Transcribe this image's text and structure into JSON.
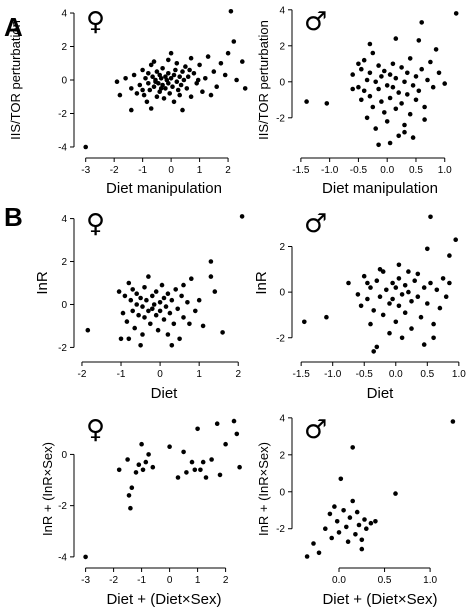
{
  "panel_labels": {
    "a": "A",
    "b": "B"
  },
  "chart_data": [
    {
      "id": "a-female",
      "type": "scatter",
      "panel": "A",
      "sex": "♀",
      "xlabel": "Diet manipulation",
      "ylabel": "IIS/TOR perturbation",
      "xlim": [
        -3.2,
        2.7
      ],
      "ylim": [
        -4.3,
        4.3
      ],
      "xticks": [
        -3,
        -2,
        -1,
        0,
        1,
        2
      ],
      "yticks": [
        -4,
        -2,
        0,
        2,
        4
      ],
      "points": [
        [
          -3.0,
          -4.0
        ],
        [
          2.1,
          4.1
        ],
        [
          -1.9,
          -0.1
        ],
        [
          -1.8,
          -0.9
        ],
        [
          -1.6,
          0.1
        ],
        [
          -1.4,
          -0.5
        ],
        [
          -1.4,
          -1.8
        ],
        [
          -1.3,
          0.3
        ],
        [
          -1.2,
          -0.8
        ],
        [
          -1.1,
          -0.3
        ],
        [
          -1.0,
          0.6
        ],
        [
          -1.0,
          -0.6
        ],
        [
          -0.95,
          -0.9
        ],
        [
          -0.9,
          0.1
        ],
        [
          -0.85,
          -1.3
        ],
        [
          -0.8,
          0.4
        ],
        [
          -0.8,
          -0.2
        ],
        [
          -0.75,
          -0.6
        ],
        [
          -0.7,
          0.9
        ],
        [
          -0.7,
          -1.7
        ],
        [
          -0.65,
          0.2
        ],
        [
          -0.6,
          -0.4
        ],
        [
          -0.6,
          1.1
        ],
        [
          -0.55,
          0.0
        ],
        [
          -0.5,
          -1.0
        ],
        [
          -0.5,
          0.5
        ],
        [
          -0.45,
          -0.2
        ],
        [
          -0.4,
          0.3
        ],
        [
          -0.4,
          -0.7
        ],
        [
          -0.35,
          0.1
        ],
        [
          -0.3,
          -0.3
        ],
        [
          -0.3,
          0.7
        ],
        [
          -0.25,
          -1.1
        ],
        [
          -0.2,
          0.2
        ],
        [
          -0.2,
          -0.5
        ],
        [
          -0.15,
          0.0
        ],
        [
          -0.1,
          0.4
        ],
        [
          -0.1,
          -0.2
        ],
        [
          -0.05,
          -0.8
        ],
        [
          0.0,
          0.1
        ],
        [
          0.0,
          1.6
        ],
        [
          0.05,
          -0.4
        ],
        [
          0.1,
          0.3
        ],
        [
          0.1,
          -1.3
        ],
        [
          0.15,
          0.6
        ],
        [
          0.2,
          -0.1
        ],
        [
          0.2,
          1.0
        ],
        [
          0.25,
          -0.6
        ],
        [
          0.3,
          0.2
        ],
        [
          0.35,
          -0.3
        ],
        [
          0.4,
          0.5
        ],
        [
          0.4,
          -1.8
        ],
        [
          0.45,
          0.0
        ],
        [
          0.5,
          0.8
        ],
        [
          0.55,
          -0.5
        ],
        [
          0.6,
          0.2
        ],
        [
          0.7,
          1.3
        ],
        [
          0.7,
          -1.0
        ],
        [
          0.8,
          0.4
        ],
        [
          0.9,
          -0.2
        ],
        [
          1.0,
          0.9
        ],
        [
          1.1,
          -0.7
        ],
        [
          1.2,
          0.1
        ],
        [
          1.3,
          1.4
        ],
        [
          1.5,
          0.5
        ],
        [
          1.6,
          -0.4
        ],
        [
          1.9,
          0.3
        ],
        [
          2.0,
          1.6
        ],
        [
          2.2,
          2.3
        ],
        [
          2.5,
          1.1
        ],
        [
          2.6,
          -0.5
        ],
        [
          2.3,
          0.0
        ],
        [
          1.75,
          1.0
        ],
        [
          1.4,
          -0.9
        ],
        [
          0.95,
          0.0
        ],
        [
          -0.55,
          -0.1
        ],
        [
          -0.35,
          -0.5
        ],
        [
          -0.1,
          1.2
        ],
        [
          0.3,
          -0.9
        ],
        [
          0.65,
          0.6
        ]
      ]
    },
    {
      "id": "a-male",
      "type": "scatter",
      "panel": "A",
      "sex": "♂",
      "xlabel": "Diet manipulation",
      "ylabel": "IIS/TOR perturbation",
      "xlim": [
        -1.55,
        1.3
      ],
      "ylim": [
        -3.9,
        4.1
      ],
      "xticks": [
        -1.5,
        -1.0,
        -0.5,
        0.0,
        0.5,
        1.0
      ],
      "yticks": [
        -2,
        0,
        2,
        4
      ],
      "xtick_labels": [
        "-1.5",
        "-1.0",
        "-0.5",
        "0.0",
        "0.5",
        "1.0"
      ],
      "points": [
        [
          1.2,
          3.8
        ],
        [
          0.6,
          3.3
        ],
        [
          -1.4,
          -1.1
        ],
        [
          -1.05,
          -1.2
        ],
        [
          -0.6,
          0.4
        ],
        [
          -0.5,
          -0.3
        ],
        [
          -0.45,
          0.7
        ],
        [
          -0.45,
          -1.0
        ],
        [
          -0.4,
          1.2
        ],
        [
          -0.4,
          -0.5
        ],
        [
          -0.35,
          0.1
        ],
        [
          -0.35,
          -2.0
        ],
        [
          -0.3,
          -0.8
        ],
        [
          -0.3,
          0.5
        ],
        [
          -0.25,
          1.6
        ],
        [
          -0.25,
          -1.4
        ],
        [
          -0.2,
          0.0
        ],
        [
          -0.2,
          -2.6
        ],
        [
          -0.15,
          0.9
        ],
        [
          -0.15,
          -0.4
        ],
        [
          -0.1,
          -1.1
        ],
        [
          -0.1,
          0.3
        ],
        [
          -0.05,
          -1.7
        ],
        [
          -0.05,
          0.6
        ],
        [
          0.0,
          -0.2
        ],
        [
          0.0,
          -2.2
        ],
        [
          0.05,
          0.4
        ],
        [
          0.05,
          -0.9
        ],
        [
          0.1,
          1.0
        ],
        [
          0.1,
          -0.3
        ],
        [
          0.15,
          -1.5
        ],
        [
          0.15,
          0.2
        ],
        [
          0.2,
          -0.6
        ],
        [
          0.2,
          -3.0
        ],
        [
          0.25,
          0.8
        ],
        [
          0.25,
          -1.2
        ],
        [
          0.3,
          0.0
        ],
        [
          0.3,
          -2.4
        ],
        [
          0.35,
          0.5
        ],
        [
          0.35,
          -0.7
        ],
        [
          0.4,
          -1.8
        ],
        [
          0.4,
          1.3
        ],
        [
          0.45,
          -0.2
        ],
        [
          0.45,
          -3.1
        ],
        [
          0.5,
          0.3
        ],
        [
          0.5,
          -1.0
        ],
        [
          0.55,
          -0.5
        ],
        [
          0.6,
          0.7
        ],
        [
          0.65,
          -1.4
        ],
        [
          0.7,
          0.1
        ],
        [
          0.75,
          1.1
        ],
        [
          0.8,
          -0.3
        ],
        [
          0.9,
          0.5
        ],
        [
          1.0,
          -0.1
        ],
        [
          0.85,
          1.8
        ],
        [
          0.55,
          2.3
        ],
        [
          0.15,
          2.4
        ],
        [
          -0.3,
          2.1
        ],
        [
          -0.5,
          1.0
        ],
        [
          -0.6,
          -0.4
        ],
        [
          0.05,
          -3.4
        ],
        [
          0.3,
          -2.8
        ],
        [
          -0.15,
          -3.5
        ],
        [
          0.65,
          -2.1
        ]
      ]
    },
    {
      "id": "b-female",
      "type": "scatter",
      "panel": "B",
      "sex": "♀",
      "xlabel": "Diet",
      "ylabel": "InR",
      "xlim": [
        -2.05,
        2.25
      ],
      "ylim": [
        -2.4,
        4.4
      ],
      "xticks": [
        -2,
        -1,
        0,
        1,
        2
      ],
      "yticks": [
        -2,
        0,
        2,
        4
      ],
      "points": [
        [
          2.1,
          4.1
        ],
        [
          -1.85,
          -1.2
        ],
        [
          -1.05,
          0.6
        ],
        [
          -0.95,
          -0.4
        ],
        [
          -0.9,
          0.4
        ],
        [
          -0.85,
          -0.8
        ],
        [
          -0.8,
          1.0
        ],
        [
          -0.8,
          -1.6
        ],
        [
          -0.75,
          0.2
        ],
        [
          -0.7,
          -0.3
        ],
        [
          -0.7,
          0.7
        ],
        [
          -0.65,
          -1.1
        ],
        [
          -0.6,
          0.0
        ],
        [
          -0.6,
          0.5
        ],
        [
          -0.55,
          -0.5
        ],
        [
          -0.5,
          0.3
        ],
        [
          -0.5,
          -1.9
        ],
        [
          -0.45,
          -0.1
        ],
        [
          -0.4,
          0.8
        ],
        [
          -0.4,
          -0.6
        ],
        [
          -0.35,
          0.2
        ],
        [
          -0.3,
          -0.3
        ],
        [
          -0.3,
          1.3
        ],
        [
          -0.25,
          -0.9
        ],
        [
          -0.2,
          0.4
        ],
        [
          -0.2,
          -0.2
        ],
        [
          -0.15,
          0.0
        ],
        [
          -0.1,
          -0.5
        ],
        [
          -0.1,
          0.6
        ],
        [
          -0.05,
          -1.2
        ],
        [
          0.0,
          0.1
        ],
        [
          0.0,
          -0.3
        ],
        [
          0.05,
          0.9
        ],
        [
          0.1,
          -0.7
        ],
        [
          0.1,
          0.3
        ],
        [
          0.15,
          -0.1
        ],
        [
          0.2,
          -1.4
        ],
        [
          0.2,
          0.5
        ],
        [
          0.25,
          -0.4
        ],
        [
          0.3,
          0.2
        ],
        [
          0.35,
          -0.9
        ],
        [
          0.4,
          0.7
        ],
        [
          0.45,
          -0.2
        ],
        [
          0.5,
          -1.6
        ],
        [
          0.55,
          0.4
        ],
        [
          0.6,
          -0.6
        ],
        [
          0.7,
          0.1
        ],
        [
          0.8,
          1.2
        ],
        [
          0.9,
          -0.3
        ],
        [
          1.1,
          -1.0
        ],
        [
          1.3,
          1.3
        ],
        [
          1.4,
          0.6
        ],
        [
          1.6,
          -1.3
        ],
        [
          1.3,
          2.0
        ],
        [
          1.0,
          0.2
        ],
        [
          0.6,
          0.9
        ],
        [
          -0.45,
          -1.4
        ],
        [
          0.3,
          -1.9
        ],
        [
          -1.0,
          -1.6
        ],
        [
          0.75,
          -0.9
        ]
      ]
    },
    {
      "id": "b-male",
      "type": "scatter",
      "panel": "B",
      "sex": "♂",
      "xlabel": "Diet",
      "ylabel": "InR",
      "xlim": [
        -1.55,
        1.05
      ],
      "ylim": [
        -2.8,
        3.6
      ],
      "xticks": [
        -1.5,
        -1.0,
        -0.5,
        0.0,
        0.5,
        1.0
      ],
      "yticks": [
        -2,
        0,
        2
      ],
      "xtick_labels": [
        "-1.5",
        "-1.0",
        "-0.5",
        "0.0",
        "0.5",
        "1.0"
      ],
      "points": [
        [
          -1.45,
          -1.3
        ],
        [
          -1.1,
          -1.1
        ],
        [
          0.55,
          3.3
        ],
        [
          0.95,
          2.3
        ],
        [
          0.5,
          1.9
        ],
        [
          0.85,
          1.6
        ],
        [
          -0.75,
          0.4
        ],
        [
          -0.6,
          -0.1
        ],
        [
          -0.55,
          -0.6
        ],
        [
          -0.5,
          0.7
        ],
        [
          -0.45,
          -0.3
        ],
        [
          -0.4,
          -1.4
        ],
        [
          -0.4,
          0.2
        ],
        [
          -0.35,
          -0.8
        ],
        [
          -0.3,
          0.5
        ],
        [
          -0.3,
          -2.4
        ],
        [
          -0.25,
          -0.2
        ],
        [
          -0.2,
          0.9
        ],
        [
          -0.2,
          -1.0
        ],
        [
          -0.15,
          0.1
        ],
        [
          -0.1,
          -0.5
        ],
        [
          -0.1,
          -1.8
        ],
        [
          -0.05,
          0.4
        ],
        [
          -0.05,
          -0.3
        ],
        [
          0.0,
          0.2
        ],
        [
          0.0,
          -1.3
        ],
        [
          0.05,
          -0.6
        ],
        [
          0.05,
          0.6
        ],
        [
          0.1,
          -0.1
        ],
        [
          0.1,
          -2.0
        ],
        [
          0.15,
          0.3
        ],
        [
          0.15,
          -0.9
        ],
        [
          0.2,
          0.0
        ],
        [
          0.25,
          -0.4
        ],
        [
          0.25,
          -1.6
        ],
        [
          0.3,
          0.5
        ],
        [
          0.35,
          -0.2
        ],
        [
          0.4,
          -1.1
        ],
        [
          0.45,
          0.2
        ],
        [
          0.5,
          -0.5
        ],
        [
          0.55,
          0.4
        ],
        [
          0.6,
          -1.4
        ],
        [
          0.65,
          0.1
        ],
        [
          0.7,
          -0.7
        ],
        [
          0.75,
          0.6
        ],
        [
          0.8,
          -0.2
        ],
        [
          0.85,
          0.4
        ],
        [
          0.45,
          -2.3
        ],
        [
          -0.35,
          -2.6
        ],
        [
          0.2,
          0.9
        ],
        [
          -0.25,
          1.0
        ],
        [
          0.05,
          1.2
        ],
        [
          0.35,
          0.8
        ],
        [
          -0.45,
          0.4
        ],
        [
          0.6,
          -2.0
        ]
      ]
    },
    {
      "id": "c-female",
      "type": "scatter",
      "panel": "",
      "sex": "♀",
      "xlabel": "Diet + (Diet×Sex)",
      "ylabel": "InR + (InR×Sex)",
      "xlim": [
        -3.2,
        2.8
      ],
      "ylim": [
        -4.2,
        1.5
      ],
      "xticks": [
        -3,
        -2,
        -1,
        0,
        1,
        2
      ],
      "yticks": [
        -4,
        -2,
        0
      ],
      "points": [
        [
          -3.0,
          -4.0
        ],
        [
          -1.8,
          -0.6
        ],
        [
          -1.5,
          -0.2
        ],
        [
          -1.45,
          -1.6
        ],
        [
          -1.4,
          -2.1
        ],
        [
          -1.35,
          -1.3
        ],
        [
          -1.2,
          -0.7
        ],
        [
          -1.1,
          -0.4
        ],
        [
          -1.0,
          0.4
        ],
        [
          -0.95,
          -0.6
        ],
        [
          -0.85,
          -0.3
        ],
        [
          -0.75,
          0.0
        ],
        [
          -0.6,
          -0.5
        ],
        [
          0.0,
          0.3
        ],
        [
          0.5,
          0.1
        ],
        [
          0.6,
          -0.7
        ],
        [
          0.8,
          -0.3
        ],
        [
          1.0,
          1.0
        ],
        [
          1.1,
          -0.6
        ],
        [
          1.2,
          -0.3
        ],
        [
          1.3,
          -0.9
        ],
        [
          1.5,
          -0.2
        ],
        [
          1.7,
          1.2
        ],
        [
          1.8,
          -0.8
        ],
        [
          2.0,
          0.4
        ],
        [
          2.3,
          1.3
        ],
        [
          2.4,
          0.8
        ],
        [
          2.5,
          -0.5
        ],
        [
          0.3,
          -0.9
        ],
        [
          0.9,
          -0.6
        ]
      ]
    },
    {
      "id": "c-male",
      "type": "scatter",
      "panel": "",
      "sex": "♂",
      "xlabel": "Diet + (Diet×Sex)",
      "ylabel": "InR + (InR×Sex)",
      "xlim": [
        -0.45,
        1.35
      ],
      "ylim": [
        -3.8,
        4.1
      ],
      "xticks": [
        0.0,
        0.5,
        1.0
      ],
      "yticks": [
        -2,
        0,
        2,
        4
      ],
      "xtick_labels": [
        "0.0",
        "0.5",
        "1.0"
      ],
      "points": [
        [
          1.25,
          3.8
        ],
        [
          -0.35,
          -3.5
        ],
        [
          -0.28,
          -2.8
        ],
        [
          -0.22,
          -3.3
        ],
        [
          -0.15,
          -2.0
        ],
        [
          -0.1,
          -1.2
        ],
        [
          -0.08,
          -2.5
        ],
        [
          -0.05,
          -0.8
        ],
        [
          -0.02,
          -1.6
        ],
        [
          0.0,
          -2.2
        ],
        [
          0.02,
          0.7
        ],
        [
          0.05,
          -1.0
        ],
        [
          0.08,
          -1.9
        ],
        [
          0.1,
          -2.7
        ],
        [
          0.12,
          -1.4
        ],
        [
          0.15,
          -0.5
        ],
        [
          0.18,
          -2.3
        ],
        [
          0.2,
          -1.1
        ],
        [
          0.22,
          -1.8
        ],
        [
          0.25,
          -3.1
        ],
        [
          0.28,
          -1.5
        ],
        [
          0.3,
          -2.0
        ],
        [
          0.35,
          -1.7
        ],
        [
          0.15,
          2.4
        ],
        [
          0.4,
          -1.6
        ],
        [
          0.62,
          -0.1
        ],
        [
          0.25,
          -2.6
        ]
      ]
    }
  ]
}
